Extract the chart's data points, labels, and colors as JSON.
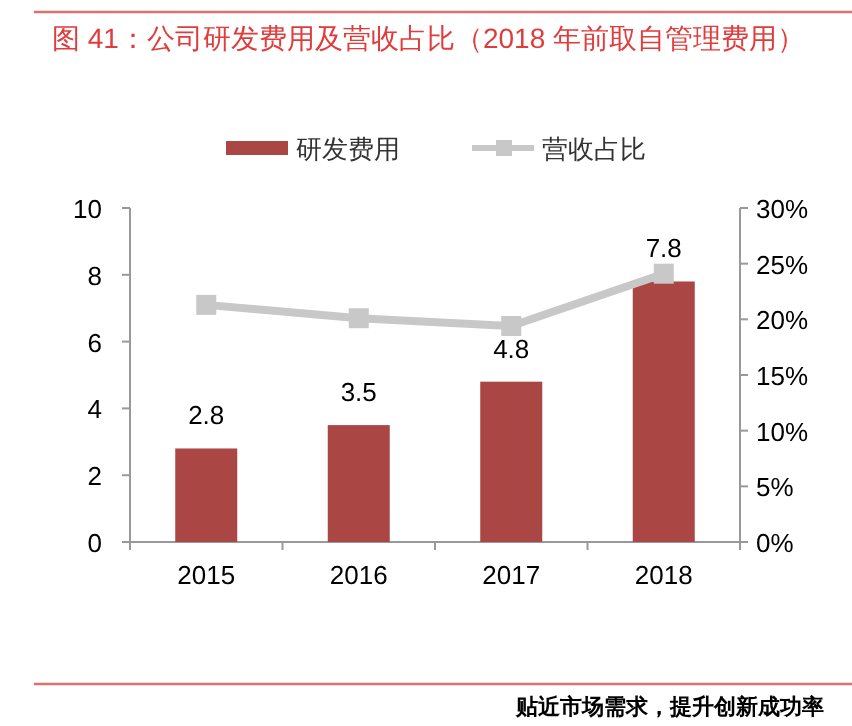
{
  "chart_data": {
    "type": "bar",
    "title": "图 41：公司研发费用及营收占比（2018 年前取自管理费用）",
    "categories": [
      "2015",
      "2016",
      "2017",
      "2018"
    ],
    "series": [
      {
        "name": "研发费用",
        "color": "#aa4644",
        "values": [
          2.8,
          3.5,
          4.8,
          7.8
        ],
        "value_labels": [
          "2.8",
          "3.5",
          "4.8",
          "7.8"
        ]
      },
      {
        "name": "营收占比",
        "type": "line",
        "axis": "y2",
        "color": "#c8c8c8",
        "marker": "square",
        "values": [
          21.3,
          20.1,
          19.4,
          24.1
        ]
      }
    ],
    "ylim": [
      0,
      10
    ],
    "yticks": [
      0,
      2,
      4,
      6,
      8,
      10
    ],
    "y2lim": [
      0,
      30
    ],
    "y2ticks": [
      {
        "value": 0,
        "label": "0%"
      },
      {
        "value": 5,
        "label": "5%"
      },
      {
        "value": 10,
        "label": "10%"
      },
      {
        "value": 15,
        "label": "15%"
      },
      {
        "value": 20,
        "label": "20%"
      },
      {
        "value": 25,
        "label": "25%"
      },
      {
        "value": 30,
        "label": "30%"
      }
    ],
    "legend": "top",
    "grid": false,
    "annotations": [
      "贴近市场需求，提升创新成功率"
    ]
  }
}
